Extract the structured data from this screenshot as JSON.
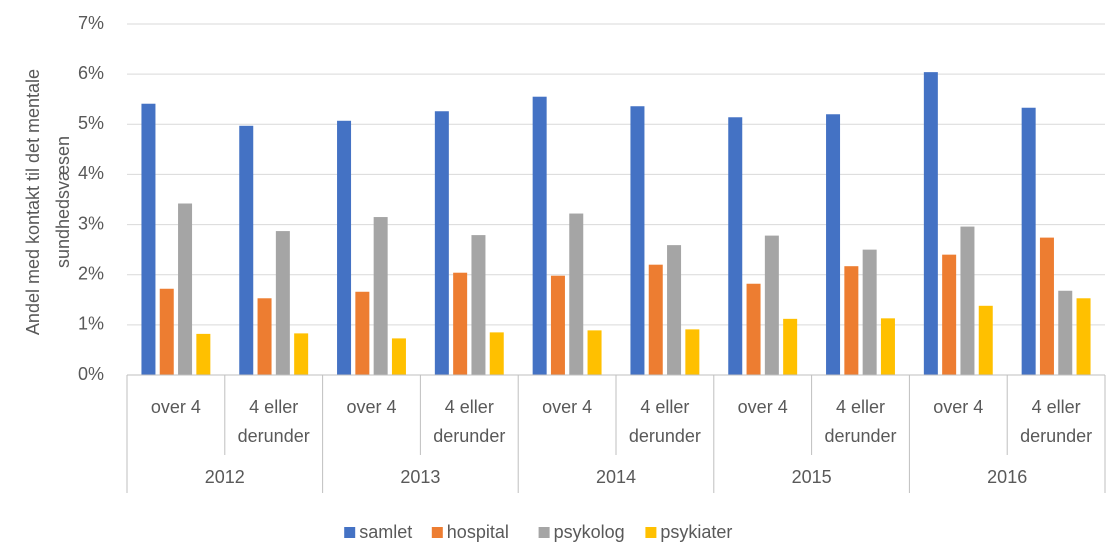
{
  "chart_data": {
    "type": "bar",
    "ylabel": "Andel med kontakt til det mentale sundhedsvæsen",
    "groups": [
      "2012",
      "2013",
      "2014",
      "2015",
      "2016"
    ],
    "categories": [
      "over 4",
      "4 eller derunder",
      "over 4",
      "4 eller derunder",
      "over 4",
      "4 eller derunder",
      "over 4",
      "4 eller derunder",
      "over 4",
      "4 eller derunder"
    ],
    "series": [
      {
        "name": "samlet",
        "color": "#4472c4",
        "values": [
          5.41,
          4.97,
          5.07,
          5.26,
          5.55,
          5.36,
          5.14,
          5.2,
          6.04,
          5.33
        ]
      },
      {
        "name": "hospital",
        "color": "#ed7d31",
        "values": [
          1.72,
          1.53,
          1.66,
          2.04,
          1.98,
          2.2,
          1.82,
          2.17,
          2.4,
          2.74
        ]
      },
      {
        "name": "psykolog",
        "color": "#a5a5a5",
        "values": [
          3.42,
          2.87,
          3.15,
          2.79,
          3.22,
          2.59,
          2.78,
          2.5,
          2.96,
          1.68
        ]
      },
      {
        "name": "psykiater",
        "color": "#ffc000",
        "values": [
          0.82,
          0.83,
          0.73,
          0.85,
          0.89,
          0.91,
          1.12,
          1.13,
          1.38,
          1.53
        ]
      }
    ],
    "ylim": [
      0,
      7
    ],
    "yticks": [
      {
        "value": 0,
        "label": "0%"
      },
      {
        "value": 1,
        "label": "1%"
      },
      {
        "value": 2,
        "label": "2%"
      },
      {
        "value": 3,
        "label": "3%"
      },
      {
        "value": 4,
        "label": "4%"
      },
      {
        "value": 5,
        "label": "5%"
      },
      {
        "value": 6,
        "label": "6%"
      },
      {
        "value": 7,
        "label": "7%"
      }
    ],
    "grid": true,
    "legend": "bottom"
  }
}
